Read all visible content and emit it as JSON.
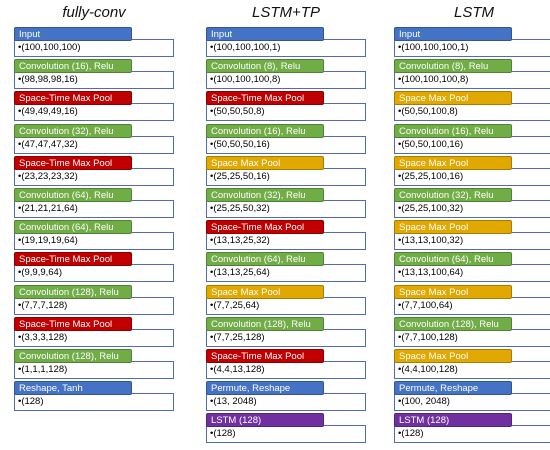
{
  "columns": [
    {
      "title": "fully-conv",
      "layers": [
        {
          "label": "Input",
          "dims": "(100,100,100)",
          "color": "blue"
        },
        {
          "label": "Convolution (16), Relu",
          "dims": "(98,98,98,16)",
          "color": "green"
        },
        {
          "label": "Space-Time Max Pool",
          "dims": "(49,49,49,16)",
          "color": "red"
        },
        {
          "label": "Convolution (32), Relu",
          "dims": "(47,47,47,32)",
          "color": "green"
        },
        {
          "label": "Space-Time Max Pool",
          "dims": "(23,23,23,32)",
          "color": "red"
        },
        {
          "label": "Convolution (64), Relu",
          "dims": "(21,21,21,64)",
          "color": "green"
        },
        {
          "label": "Convolution (64), Relu",
          "dims": "(19,19,19,64)",
          "color": "green"
        },
        {
          "label": "Space-Time Max Pool",
          "dims": "(9,9,9,64)",
          "color": "red"
        },
        {
          "label": "Convolution (128), Relu",
          "dims": "(7,7,7,128)",
          "color": "green"
        },
        {
          "label": "Space-Time Max Pool",
          "dims": "(3,3,3,128)",
          "color": "red"
        },
        {
          "label": "Convolution (128), Relu",
          "dims": "(1,1,1,128)",
          "color": "green"
        },
        {
          "label": "Reshape, Tanh",
          "dims": "(128)",
          "color": "blue"
        }
      ]
    },
    {
      "title": "LSTM+TP",
      "layers": [
        {
          "label": "Input",
          "dims": "(100,100,100,1)",
          "color": "blue"
        },
        {
          "label": "Convolution (8), Relu",
          "dims": "(100,100,100,8)",
          "color": "green"
        },
        {
          "label": "Space-Time Max Pool",
          "dims": "(50,50,50,8)",
          "color": "red"
        },
        {
          "label": "Convolution (16), Relu",
          "dims": "(50,50,50,16)",
          "color": "green"
        },
        {
          "label": "Space Max Pool",
          "dims": "(25,25,50,16)",
          "color": "yellow"
        },
        {
          "label": "Convolution (32), Relu",
          "dims": "(25,25,50,32)",
          "color": "green"
        },
        {
          "label": "Space-Time Max Pool",
          "dims": "(13,13,25,32)",
          "color": "red"
        },
        {
          "label": "Convolution (64), Relu",
          "dims": "(13,13,25,64)",
          "color": "green"
        },
        {
          "label": "Space Max Pool",
          "dims": "(7,7,25,64)",
          "color": "yellow"
        },
        {
          "label": "Convolution (128), Relu",
          "dims": "(7,7,25,128)",
          "color": "green"
        },
        {
          "label": "Space-Time Max Pool",
          "dims": "(4,4,13,128)",
          "color": "red"
        },
        {
          "label": "Permute, Reshape",
          "dims": "(13, 2048)",
          "color": "blue"
        },
        {
          "label": "LSTM (128)",
          "dims": "(128)",
          "color": "purple"
        }
      ]
    },
    {
      "title": "LSTM",
      "layers": [
        {
          "label": "Input",
          "dims": "(100,100,100,1)",
          "color": "blue"
        },
        {
          "label": "Convolution (8), Relu",
          "dims": "(100,100,100,8)",
          "color": "green"
        },
        {
          "label": "Space Max Pool",
          "dims": "(50,50,100,8)",
          "color": "yellow"
        },
        {
          "label": "Convolution (16), Relu",
          "dims": "(50,50,100,16)",
          "color": "green"
        },
        {
          "label": "Space Max Pool",
          "dims": "(25,25,100,16)",
          "color": "yellow"
        },
        {
          "label": "Convolution (32), Relu",
          "dims": "(25,25,100,32)",
          "color": "green"
        },
        {
          "label": "Space Max Pool",
          "dims": "(13,13,100,32)",
          "color": "yellow"
        },
        {
          "label": "Convolution (64), Relu",
          "dims": "(13,13,100,64)",
          "color": "green"
        },
        {
          "label": "Space Max Pool",
          "dims": "(7,7,100,64)",
          "color": "yellow"
        },
        {
          "label": "Convolution (128), Relu",
          "dims": "(7,7,100,128)",
          "color": "green"
        },
        {
          "label": "Space Max Pool",
          "dims": "(4,4,100,128)",
          "color": "yellow"
        },
        {
          "label": "Permute, Reshape",
          "dims": "(100, 2048)",
          "color": "blue"
        },
        {
          "label": "LSTM (128)",
          "dims": "(128)",
          "color": "purple"
        }
      ]
    }
  ]
}
